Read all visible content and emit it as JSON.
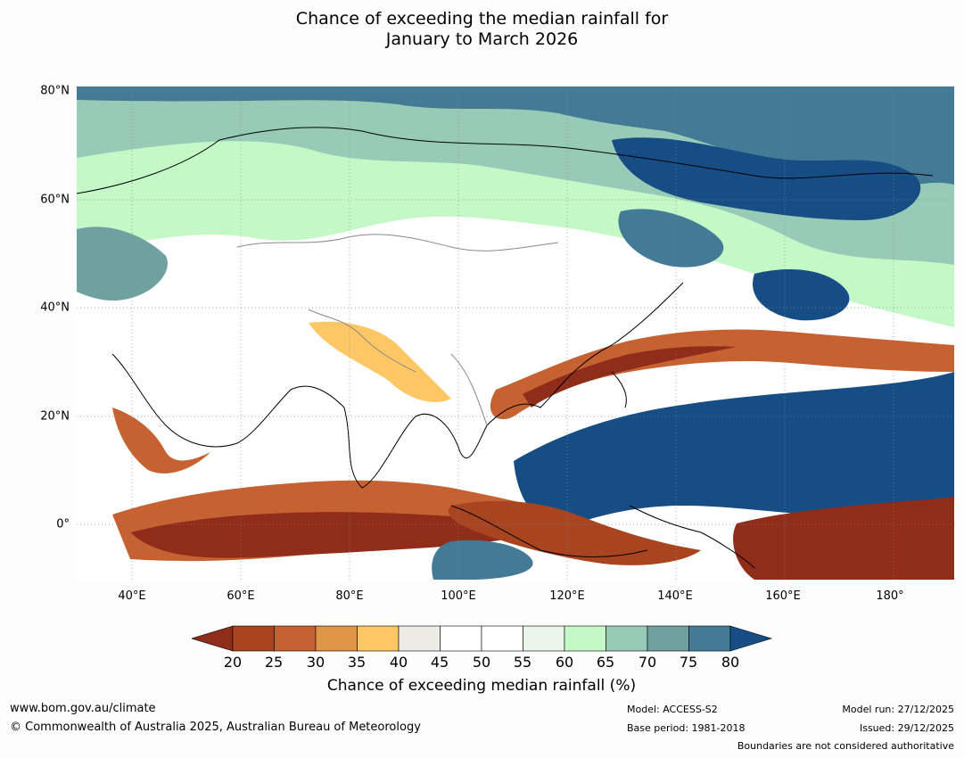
{
  "title_line1": "Chance of exceeding the median rainfall for",
  "title_line2": "January to March 2026",
  "map": {
    "lat_labels": [
      "80°N",
      "60°N",
      "40°N",
      "20°N",
      "0°"
    ],
    "lon_labels": [
      "40°E",
      "60°E",
      "80°E",
      "100°E",
      "120°E",
      "140°E",
      "160°E",
      "180°"
    ]
  },
  "colorbar": {
    "ticks": [
      "20",
      "25",
      "30",
      "35",
      "40",
      "45",
      "50",
      "55",
      "60",
      "65",
      "70",
      "75",
      "80"
    ],
    "colors": [
      "#8f2c1a",
      "#a8441f",
      "#c66231",
      "#e09445",
      "#fdc765",
      "#edebe6",
      "#ffffff",
      "#ffffff",
      "#e8f5e8",
      "#c4f8c7",
      "#98cbb7",
      "#6ea19f",
      "#437a96",
      "#154d84"
    ],
    "title": "Chance of exceeding median rainfall (%)"
  },
  "footer": {
    "website": "www.bom.gov.au/climate",
    "copyright": "© Commonwealth of Australia 2025, Australian Bureau of Meteorology",
    "model": "Model: ACCESS-S2",
    "base_period": "Base period: 1981-2018",
    "model_run": "Model run: 27/12/2025",
    "issued": "Issued: 29/12/2025",
    "boundaries": "Boundaries are not considered authoritative"
  }
}
